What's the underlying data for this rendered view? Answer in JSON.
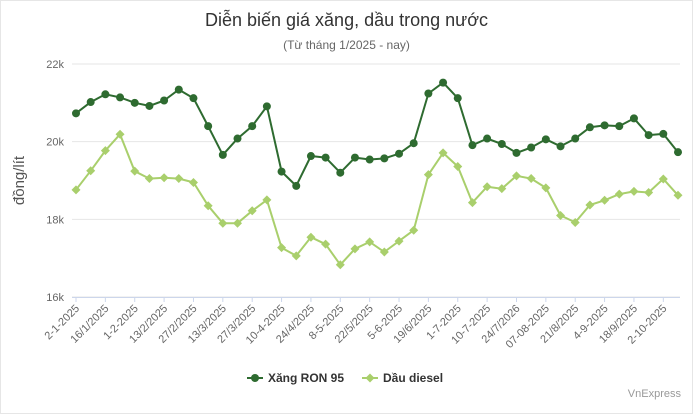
{
  "chart_data": {
    "type": "line",
    "title": "Diễn biến giá xăng, dầu trong nước",
    "subtitle": "(Từ tháng 1/2025 - nay)",
    "ylabel": "đồng/lít",
    "xlabel": "",
    "ylim": [
      16000,
      22000
    ],
    "yticks": [
      16000,
      18000,
      20000,
      22000
    ],
    "ytick_labels": [
      "16k",
      "18k",
      "20k",
      "22k"
    ],
    "grid": true,
    "legend_position": "bottom",
    "x_tick_labels": [
      "2-1-2025",
      "16/1/2025",
      "1-2-2025",
      "13/2/2025",
      "27/2/2025",
      "13/3/2025",
      "27/3/2025",
      "10-4-2025",
      "24/4/2025",
      "8-5-2025",
      "22/5/2025",
      "5-6-2025",
      "19/6/2025",
      "1-7-2025",
      "10-7-2025",
      "24/7/2026",
      "07-08-2025",
      "21/8/2025",
      "4-9-2025",
      "18/9/2025",
      "2-10-2025"
    ],
    "series": [
      {
        "name": "Xăng RON 95",
        "color": "#2e6b30",
        "values": [
          20730,
          21020,
          21220,
          21140,
          21000,
          20920,
          21060,
          21340,
          21120,
          20400,
          19660,
          20080,
          20400,
          20910,
          19230,
          18860,
          19630,
          19590,
          19200,
          19590,
          19540,
          19570,
          19690,
          19960,
          21240,
          21520,
          21120,
          19910,
          20080,
          19940,
          19710,
          19850,
          20060,
          19880,
          20080,
          20370,
          20420,
          20400,
          20600,
          20170,
          20200,
          19730
        ]
      },
      {
        "name": "Dầu diesel",
        "color": "#a9cf6c",
        "values": [
          18760,
          19250,
          19770,
          20190,
          19240,
          19050,
          19070,
          19050,
          18950,
          18350,
          17900,
          17900,
          18220,
          18500,
          17270,
          17060,
          17540,
          17360,
          16830,
          17240,
          17420,
          17160,
          17440,
          17720,
          19150,
          19710,
          19360,
          18430,
          18840,
          18790,
          19120,
          19050,
          18810,
          18100,
          17920,
          18370,
          18490,
          18650,
          18720,
          18690,
          19040,
          18620
        ]
      }
    ]
  },
  "credit": "VnExpress"
}
